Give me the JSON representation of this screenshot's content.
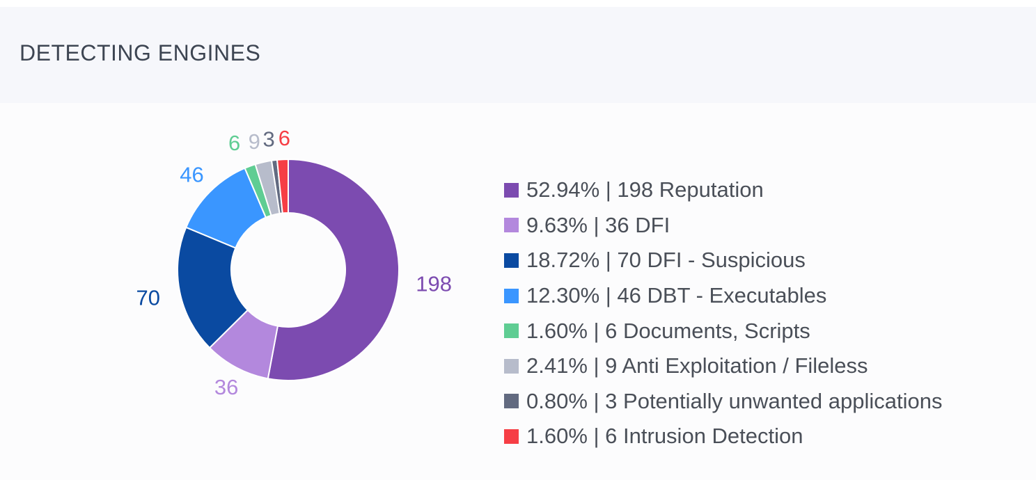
{
  "panel": {
    "title": "DETECTING ENGINES"
  },
  "chart_data": {
    "type": "pie",
    "donut": true,
    "title": "DETECTING ENGINES",
    "categories": [
      "Reputation",
      "DFI",
      "DFI - Suspicious",
      "DBT - Executables",
      "Documents, Scripts",
      "Anti Exploitation / Fileless",
      "Potentially unwanted applications",
      "Intrusion Detection"
    ],
    "values": [
      198,
      36,
      70,
      46,
      6,
      9,
      3,
      6
    ],
    "percentages": [
      "52.94%",
      "9.63%",
      "18.72%",
      "12.30%",
      "1.60%",
      "2.41%",
      "0.80%",
      "1.60%"
    ],
    "slice_labels": [
      "198",
      "36",
      "70",
      "46",
      "6",
      "9",
      "3",
      "6"
    ],
    "colors": [
      "#7c4bb0",
      "#b388dd",
      "#0a4aa1",
      "#3a96ff",
      "#5fcd93",
      "#b7bccb",
      "#626a80",
      "#f63e45"
    ],
    "legend_labels": [
      "52.94% | 198 Reputation",
      "9.63% | 36 DFI",
      "18.72% | 70 DFI - Suspicious",
      "12.30% | 46 DBT - Executables",
      "1.60% | 6 Documents, Scripts",
      "2.41% | 9 Anti Exploitation / Fileless",
      "0.80% | 3 Potentially unwanted applications",
      "1.60% | 6 Intrusion Detection"
    ],
    "legend_position": "right"
  }
}
